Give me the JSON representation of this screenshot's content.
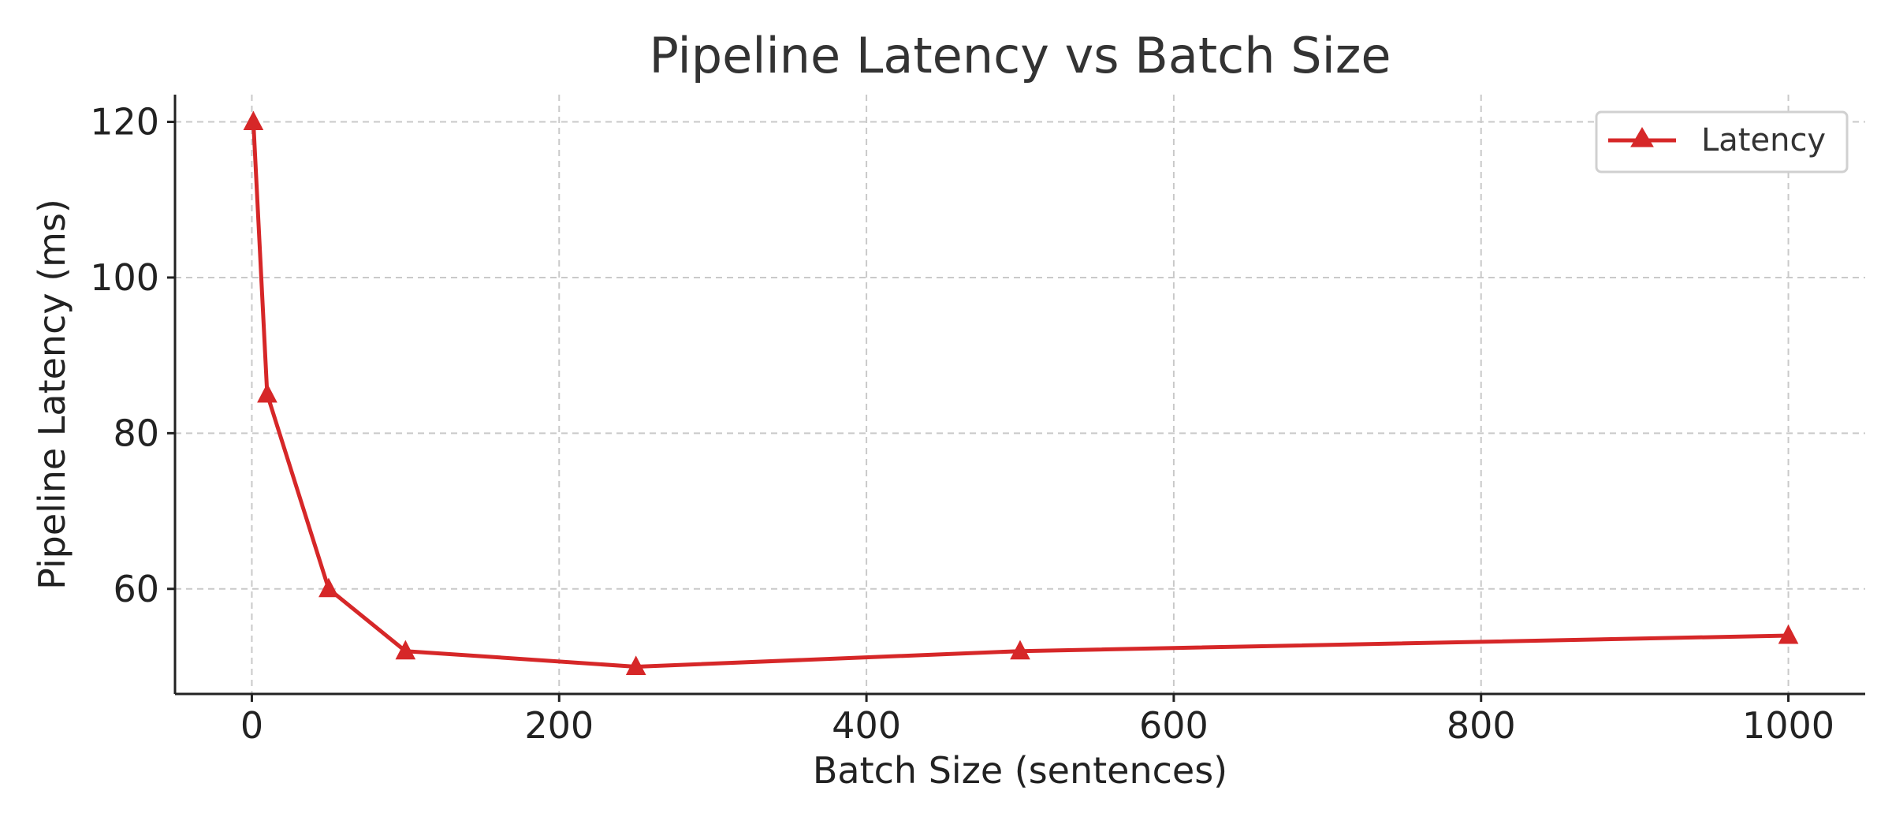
{
  "chart_data": {
    "type": "line",
    "title": "Pipeline Latency vs Batch Size",
    "xlabel": "Batch Size (sentences)",
    "ylabel": "Pipeline Latency (ms)",
    "xlim": [
      -50,
      1050
    ],
    "ylim": [
      46.5,
      123.5
    ],
    "x_ticks": [
      0,
      200,
      400,
      600,
      800,
      1000
    ],
    "y_ticks": [
      60,
      80,
      100,
      120
    ],
    "grid": true,
    "legend_position": "top-right",
    "series": [
      {
        "name": "Latency",
        "color": "#d62728",
        "marker": "triangle-up",
        "x": [
          1,
          10,
          50,
          100,
          250,
          500,
          1000
        ],
        "y": [
          120,
          85,
          60,
          52,
          50,
          52,
          54
        ]
      }
    ]
  }
}
